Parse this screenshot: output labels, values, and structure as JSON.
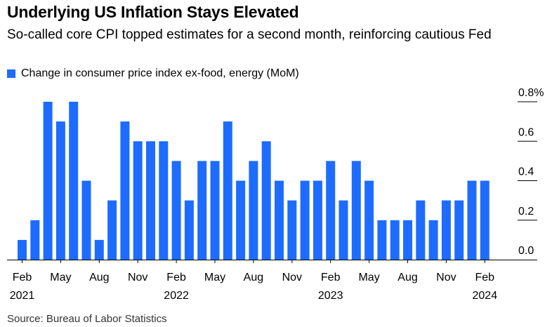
{
  "header": {
    "title": "Underlying US Inflation Stays Elevated",
    "subtitle": "So-called core CPI topped estimates for a second month, reinforcing cautious Fed"
  },
  "legend": {
    "label": "Change in consumer price index ex-food, energy (MoM)",
    "color": "#1e6cff"
  },
  "source": "Source: Bureau of Labor Statistics",
  "chart_data": {
    "type": "bar",
    "color": "#1e6cff",
    "categories": [
      "2021-02",
      "2021-03",
      "2021-04",
      "2021-05",
      "2021-06",
      "2021-07",
      "2021-08",
      "2021-09",
      "2021-10",
      "2021-11",
      "2021-12",
      "2022-01",
      "2022-02",
      "2022-03",
      "2022-04",
      "2022-05",
      "2022-06",
      "2022-07",
      "2022-08",
      "2022-09",
      "2022-10",
      "2022-11",
      "2022-12",
      "2023-01",
      "2023-02",
      "2023-03",
      "2023-04",
      "2023-05",
      "2023-06",
      "2023-07",
      "2023-08",
      "2023-09",
      "2023-10",
      "2023-11",
      "2023-12",
      "2024-01",
      "2024-02"
    ],
    "values": [
      0.1,
      0.2,
      0.8,
      0.7,
      0.8,
      0.4,
      0.1,
      0.3,
      0.7,
      0.6,
      0.6,
      0.6,
      0.5,
      0.3,
      0.5,
      0.5,
      0.7,
      0.4,
      0.5,
      0.6,
      0.4,
      0.3,
      0.4,
      0.4,
      0.5,
      0.3,
      0.5,
      0.4,
      0.2,
      0.2,
      0.2,
      0.3,
      0.2,
      0.3,
      0.3,
      0.4,
      0.4
    ],
    "ylim": [
      0,
      0.8
    ],
    "y_ticks": [
      {
        "value": 0.0,
        "label": "0.0"
      },
      {
        "value": 0.2,
        "label": "0.2"
      },
      {
        "value": 0.4,
        "label": "0.4"
      },
      {
        "value": 0.6,
        "label": "0.6"
      },
      {
        "value": 0.8,
        "label": "0.8%"
      }
    ],
    "x_ticks": [
      {
        "index": 0,
        "label": "Feb",
        "year": "2021"
      },
      {
        "index": 3,
        "label": "May"
      },
      {
        "index": 6,
        "label": "Aug"
      },
      {
        "index": 9,
        "label": "Nov"
      },
      {
        "index": 12,
        "label": "Feb",
        "year": "2022"
      },
      {
        "index": 15,
        "label": "May"
      },
      {
        "index": 18,
        "label": "Aug"
      },
      {
        "index": 21,
        "label": "Nov"
      },
      {
        "index": 24,
        "label": "Feb",
        "year": "2023"
      },
      {
        "index": 27,
        "label": "May"
      },
      {
        "index": 30,
        "label": "Aug"
      },
      {
        "index": 33,
        "label": "Nov"
      },
      {
        "index": 36,
        "label": "Feb",
        "year": "2024"
      }
    ],
    "grid": false,
    "y_axis_side": "right"
  }
}
